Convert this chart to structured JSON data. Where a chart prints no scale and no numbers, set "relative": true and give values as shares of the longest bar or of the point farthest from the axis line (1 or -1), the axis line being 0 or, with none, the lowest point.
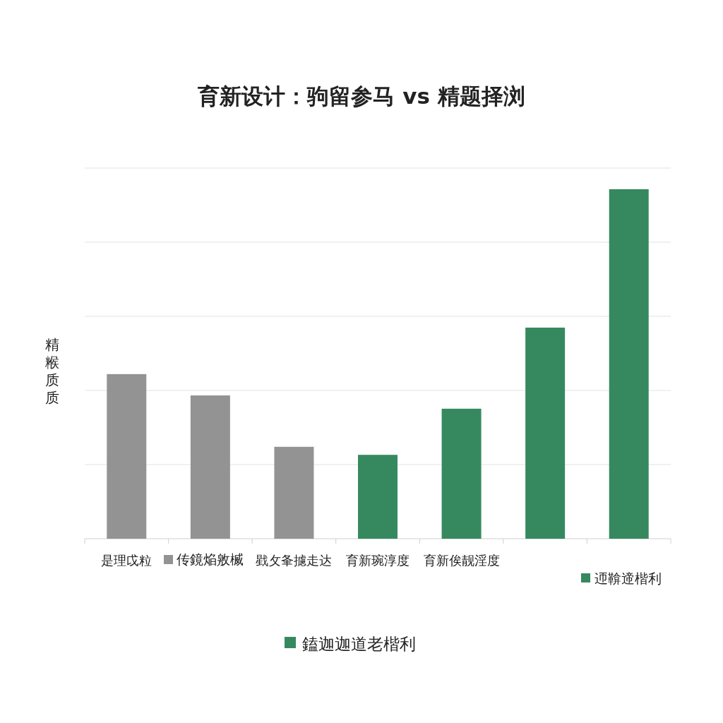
{
  "chart_data": {
    "type": "bar",
    "title": "育新设计：驹留参马 vs 精题择浏",
    "ylabel": "精糇质质",
    "relative": true,
    "grid": "y",
    "legend": "bottom",
    "categories": [
      "是理戉粒",
      null,
      "戥攵夆攄走达",
      "育新琬淳度",
      "育新俟靓淫度",
      null,
      null
    ],
    "series": [
      {
        "name": "传鏡焔敫楲",
        "color": "#939393",
        "values": [
          0.471,
          0.41,
          0.263,
          null,
          null,
          null,
          null
        ]
      },
      {
        "name": "迊鞥遆楷利",
        "color": "#36895f",
        "values": [
          null,
          null,
          null,
          0.24,
          0.372,
          0.604,
          1
        ]
      }
    ],
    "annotations": [
      "鎑迦迦道老楷利"
    ]
  }
}
